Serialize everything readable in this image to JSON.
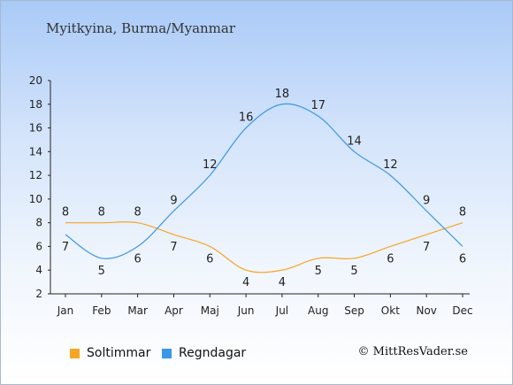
{
  "title": "Myitkyina, Burma/Myanmar",
  "credit": "© MittResVader.se",
  "colors": {
    "sun": "#f5a623",
    "rain": "#3a97e8"
  },
  "chart_data": {
    "type": "line",
    "categories": [
      "Jan",
      "Feb",
      "Mar",
      "Apr",
      "Maj",
      "Jun",
      "Jul",
      "Aug",
      "Sep",
      "Okt",
      "Nov",
      "Dec"
    ],
    "ylim": [
      2,
      20
    ],
    "yticks": [
      2,
      4,
      6,
      8,
      10,
      12,
      14,
      16,
      18,
      20
    ],
    "series": [
      {
        "name": "Soltimmar",
        "color": "#f5a623",
        "values": [
          8,
          8,
          8,
          7,
          6,
          4,
          4,
          5,
          5,
          6,
          7,
          8
        ]
      },
      {
        "name": "Regndagar",
        "color": "#3a97e8",
        "values": [
          7,
          5,
          6,
          9,
          12,
          16,
          18,
          17,
          14,
          12,
          9,
          6
        ]
      }
    ],
    "legend_position": "bottom-left",
    "grid": false
  }
}
